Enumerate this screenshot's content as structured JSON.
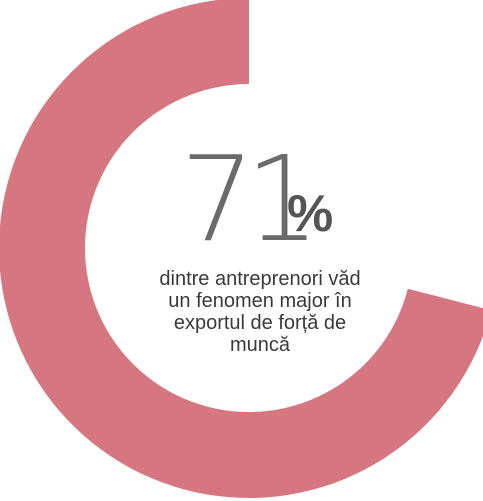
{
  "chart_data": {
    "type": "pie",
    "style": "donut",
    "value_percent": 71,
    "remaining_percent": 29,
    "colors": {
      "filled": "#d67680",
      "background": "#ffffff",
      "number": "#6b6b6b",
      "caption": "#3a3a3a"
    },
    "value_label": "71",
    "unit_label": "%",
    "caption_lines": [
      "dintre antreprenori văd",
      "un fenomen major în",
      "exportul de forță de",
      "muncă"
    ]
  }
}
